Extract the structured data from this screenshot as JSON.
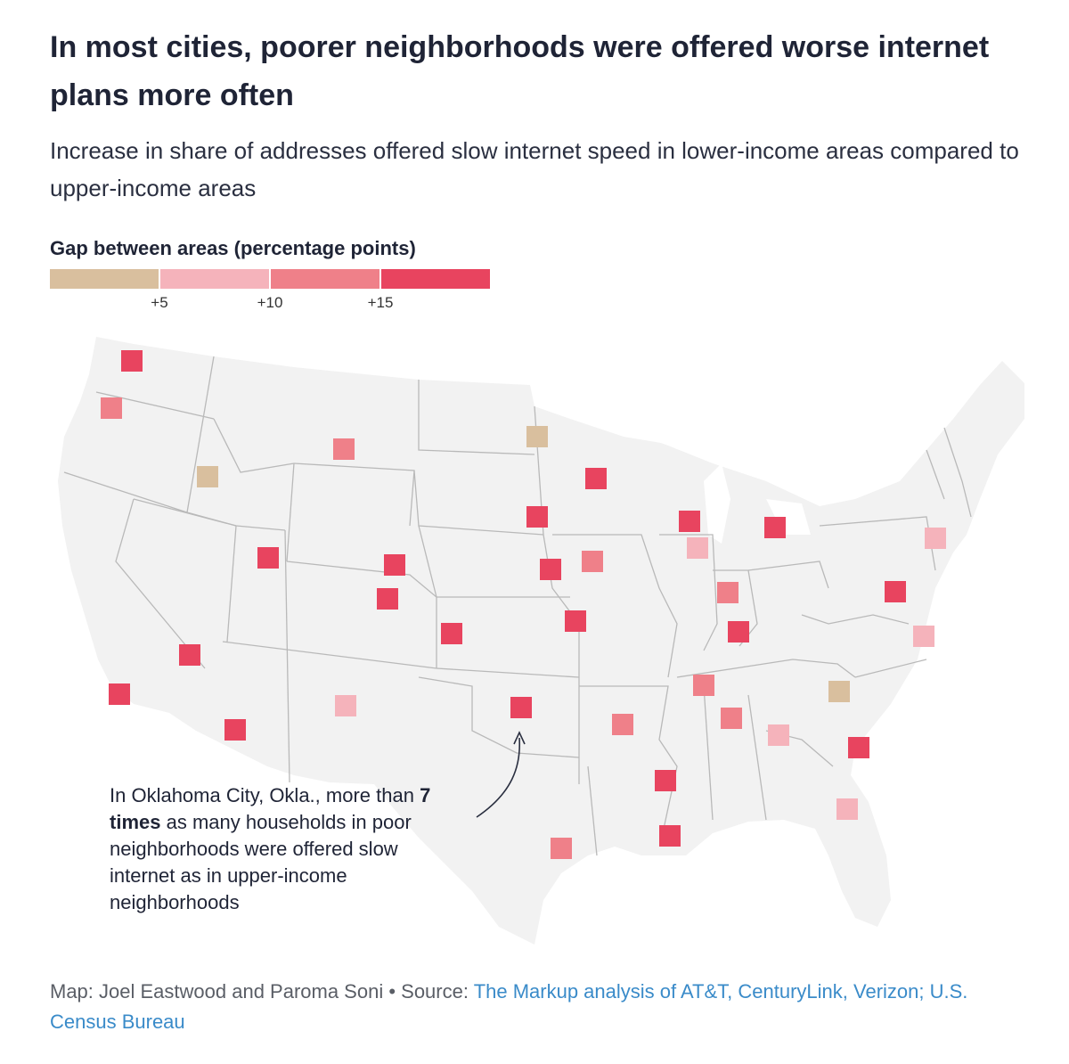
{
  "header": {
    "title": "In most cities, poorer neighborhoods were offered worse internet plans more often",
    "subtitle": "Increase in share of addresses offered slow internet speed in lower-income areas compared to upper-income areas"
  },
  "legend": {
    "title": "Gap between areas (percentage points)",
    "bins": [
      {
        "color": "#d9bf9e"
      },
      {
        "color": "#f5b3bb"
      },
      {
        "color": "#ef8089"
      },
      {
        "color": "#e8445f"
      }
    ],
    "ticks": [
      "+5",
      "+10",
      "+15"
    ]
  },
  "annotation": {
    "before": "In Oklahoma City, Okla., more than ",
    "bold": "7 times",
    "after": " as many households in poor neighborhoods were offered slow internet as in upper-income neighborhoods"
  },
  "footer": {
    "credit": "Map: Joel Eastwood and Paroma Soni • Source: ",
    "source": "The Markup analysis of AT&T, CenturyLink, Verizon; U.S. Census Bureau"
  }
}
